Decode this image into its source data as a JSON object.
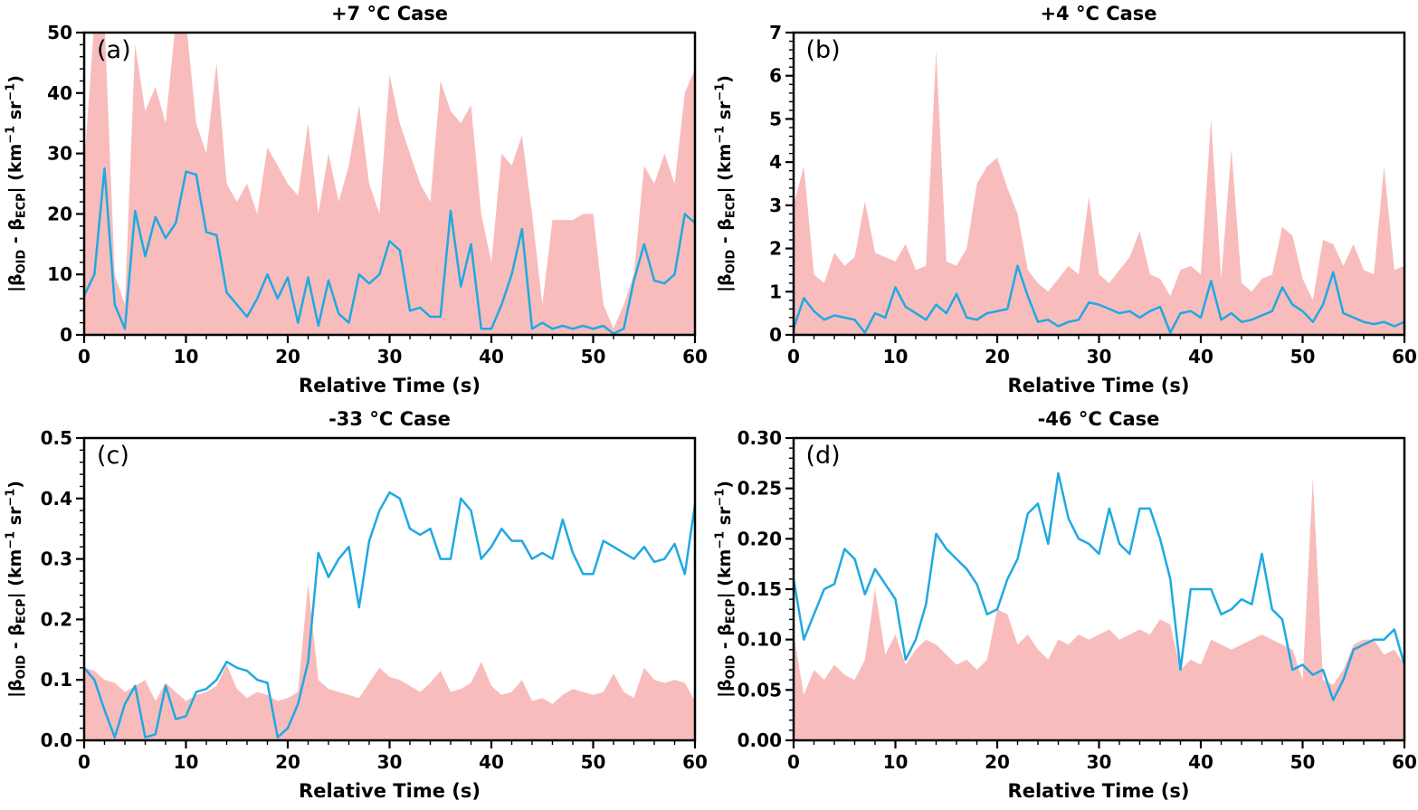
{
  "figure": {
    "background": "#ffffff",
    "xlabel": "Relative Time (s)",
    "ylabel_text": "|βOID - βECP| (km−1 sr−1)",
    "ylabel_parts": [
      {
        "t": "|β"
      },
      {
        "t": "OID",
        "s": "sub"
      },
      {
        "t": " - β"
      },
      {
        "t": "ECP",
        "s": "sub"
      },
      {
        "t": "| (km"
      },
      {
        "t": "−1",
        "s": "sup"
      },
      {
        "t": " sr"
      },
      {
        "t": "−1",
        "s": "sup"
      },
      {
        "t": ")"
      }
    ],
    "x": [
      0,
      1,
      2,
      3,
      4,
      5,
      6,
      7,
      8,
      9,
      10,
      11,
      12,
      13,
      14,
      15,
      16,
      17,
      18,
      19,
      20,
      21,
      22,
      23,
      24,
      25,
      26,
      27,
      28,
      29,
      30,
      31,
      32,
      33,
      34,
      35,
      36,
      37,
      38,
      39,
      40,
      41,
      42,
      43,
      44,
      45,
      46,
      47,
      48,
      49,
      50,
      51,
      52,
      53,
      54,
      55,
      56,
      57,
      58,
      59,
      60
    ]
  },
  "chart_data": [
    {
      "type": "area+line",
      "panel_label": "(a)",
      "title": "+7 °C Case",
      "xlabel": "Relative Time (s)",
      "ylabel": "|βOID - βECP| (km−1 sr−1)",
      "xlim": [
        0,
        60
      ],
      "ylim": [
        0,
        50
      ],
      "xticks": [
        0,
        10,
        20,
        30,
        40,
        50,
        60
      ],
      "xtick_labels": [
        "0",
        "10",
        "20",
        "30",
        "40",
        "50",
        "60"
      ],
      "yticks": [
        0,
        10,
        20,
        30,
        40,
        50
      ],
      "ytick_labels": [
        "0",
        "10",
        "20",
        "30",
        "40",
        "50"
      ],
      "x_minor_step": 2,
      "y_minor_step": 2,
      "grid": false,
      "legend": "none",
      "series": [
        {
          "name": "uncertainty-envelope",
          "type": "area",
          "color": "#F8BCBC",
          "values": [
            28,
            52,
            52,
            10,
            5,
            48,
            37,
            41,
            35,
            52,
            52,
            35,
            30,
            45,
            25,
            22,
            25,
            20,
            31,
            28,
            25,
            23,
            35,
            20,
            30,
            22,
            28,
            38,
            25,
            20,
            43,
            35,
            30,
            25,
            22,
            42,
            37,
            35,
            38,
            20,
            12,
            30,
            28,
            33,
            20,
            5,
            19,
            19,
            19,
            20,
            20,
            5,
            1,
            5,
            10,
            28,
            25,
            30,
            25,
            40,
            44
          ]
        },
        {
          "name": "abs-difference",
          "type": "line",
          "color": "#1FA9E2",
          "values": [
            6.5,
            10,
            27.5,
            5,
            1,
            20.5,
            13,
            19.5,
            16,
            18.5,
            27,
            26.5,
            17,
            16.5,
            7,
            5,
            3,
            6,
            10,
            6,
            9.5,
            2,
            9.5,
            1.5,
            9,
            3.5,
            2,
            10,
            8.5,
            10,
            15.5,
            14,
            4,
            4.5,
            3,
            3,
            20.5,
            8,
            15,
            1,
            1,
            5,
            10,
            17.5,
            1,
            2,
            1,
            1.5,
            1,
            1.5,
            1,
            1.5,
            0.2,
            1,
            9,
            15,
            9,
            8.5,
            10,
            20,
            18.5
          ]
        }
      ]
    },
    {
      "type": "area+line",
      "panel_label": "(b)",
      "title": "+4 °C Case",
      "xlabel": "Relative Time (s)",
      "ylabel": "|βOID - βECP| (km−1 sr−1)",
      "xlim": [
        0,
        60
      ],
      "ylim": [
        0,
        7
      ],
      "xticks": [
        0,
        10,
        20,
        30,
        40,
        50,
        60
      ],
      "xtick_labels": [
        "0",
        "10",
        "20",
        "30",
        "40",
        "50",
        "60"
      ],
      "yticks": [
        0,
        1,
        2,
        3,
        4,
        5,
        6,
        7
      ],
      "ytick_labels": [
        "0",
        "1",
        "2",
        "3",
        "4",
        "5",
        "6",
        "7"
      ],
      "x_minor_step": 2,
      "y_minor_step": 0.2,
      "grid": false,
      "legend": "none",
      "series": [
        {
          "name": "uncertainty-envelope",
          "type": "area",
          "color": "#F8BCBC",
          "values": [
            3.0,
            3.9,
            1.4,
            1.2,
            1.9,
            1.6,
            1.8,
            3.1,
            1.9,
            1.8,
            1.7,
            2.1,
            1.5,
            1.6,
            6.6,
            1.7,
            1.6,
            2.0,
            3.5,
            3.9,
            4.1,
            3.4,
            2.8,
            1.5,
            1.2,
            1.0,
            1.3,
            1.6,
            1.4,
            3.2,
            1.4,
            1.2,
            1.5,
            1.8,
            2.4,
            1.4,
            1.3,
            0.9,
            1.5,
            1.6,
            1.4,
            5.0,
            1.3,
            4.3,
            1.2,
            1.0,
            1.3,
            1.4,
            2.5,
            2.3,
            1.3,
            0.8,
            2.2,
            2.1,
            1.6,
            2.1,
            1.5,
            1.4,
            3.9,
            1.5,
            1.6
          ]
        },
        {
          "name": "abs-difference",
          "type": "line",
          "color": "#1FA9E2",
          "values": [
            0.15,
            0.85,
            0.55,
            0.35,
            0.45,
            0.4,
            0.35,
            0.05,
            0.5,
            0.4,
            1.1,
            0.65,
            0.5,
            0.35,
            0.7,
            0.5,
            0.95,
            0.4,
            0.35,
            0.5,
            0.55,
            0.6,
            1.6,
            0.9,
            0.3,
            0.35,
            0.2,
            0.3,
            0.35,
            0.75,
            0.7,
            0.6,
            0.5,
            0.55,
            0.4,
            0.55,
            0.65,
            0.05,
            0.5,
            0.55,
            0.4,
            1.25,
            0.35,
            0.5,
            0.3,
            0.35,
            0.45,
            0.55,
            1.1,
            0.7,
            0.55,
            0.3,
            0.7,
            1.45,
            0.5,
            0.4,
            0.3,
            0.25,
            0.3,
            0.2,
            0.3
          ]
        }
      ]
    },
    {
      "type": "area+line",
      "panel_label": "(c)",
      "title": "-33 °C Case",
      "xlabel": "Relative Time (s)",
      "ylabel": "|βOID - βECP| (km−1 sr−1)",
      "xlim": [
        0,
        60
      ],
      "ylim": [
        0,
        0.5
      ],
      "xticks": [
        0,
        10,
        20,
        30,
        40,
        50,
        60
      ],
      "xtick_labels": [
        "0",
        "10",
        "20",
        "30",
        "40",
        "50",
        "60"
      ],
      "yticks": [
        0,
        0.1,
        0.2,
        0.3,
        0.4,
        0.5
      ],
      "ytick_labels": [
        "0.0",
        "0.1",
        "0.2",
        "0.3",
        "0.4",
        "0.5"
      ],
      "x_minor_step": 2,
      "y_minor_step": 0.02,
      "grid": false,
      "legend": "none",
      "series": [
        {
          "name": "uncertainty-envelope",
          "type": "area",
          "color": "#F8BCBC",
          "values": [
            0.12,
            0.115,
            0.1,
            0.095,
            0.08,
            0.09,
            0.1,
            0.065,
            0.095,
            0.08,
            0.065,
            0.075,
            0.08,
            0.09,
            0.125,
            0.085,
            0.07,
            0.08,
            0.075,
            0.065,
            0.07,
            0.08,
            0.26,
            0.1,
            0.085,
            0.08,
            0.075,
            0.07,
            0.095,
            0.12,
            0.105,
            0.1,
            0.09,
            0.08,
            0.095,
            0.115,
            0.08,
            0.085,
            0.095,
            0.13,
            0.09,
            0.075,
            0.08,
            0.1,
            0.065,
            0.07,
            0.06,
            0.075,
            0.085,
            0.08,
            0.075,
            0.08,
            0.11,
            0.08,
            0.07,
            0.12,
            0.1,
            0.095,
            0.1,
            0.095,
            0.065
          ]
        },
        {
          "name": "abs-difference",
          "type": "line",
          "color": "#1FA9E2",
          "values": [
            0.12,
            0.1,
            0.05,
            0.005,
            0.06,
            0.09,
            0.005,
            0.01,
            0.09,
            0.035,
            0.04,
            0.08,
            0.085,
            0.1,
            0.13,
            0.12,
            0.115,
            0.1,
            0.095,
            0.005,
            0.02,
            0.06,
            0.13,
            0.31,
            0.27,
            0.3,
            0.32,
            0.22,
            0.33,
            0.38,
            0.41,
            0.4,
            0.35,
            0.34,
            0.35,
            0.3,
            0.3,
            0.4,
            0.38,
            0.3,
            0.32,
            0.35,
            0.33,
            0.33,
            0.3,
            0.31,
            0.3,
            0.365,
            0.31,
            0.275,
            0.275,
            0.33,
            0.32,
            0.31,
            0.3,
            0.32,
            0.295,
            0.3,
            0.325,
            0.275,
            0.39
          ]
        }
      ]
    },
    {
      "type": "area+line",
      "panel_label": "(d)",
      "title": "-46 °C Case",
      "xlabel": "Relative Time (s)",
      "ylabel": "|βOID - βECP| (km−1 sr−1)",
      "xlim": [
        0,
        60
      ],
      "ylim": [
        0,
        0.3
      ],
      "xticks": [
        0,
        10,
        20,
        30,
        40,
        50,
        60
      ],
      "xtick_labels": [
        "0",
        "10",
        "20",
        "30",
        "40",
        "50",
        "60"
      ],
      "yticks": [
        0,
        0.05,
        0.1,
        0.15,
        0.2,
        0.25,
        0.3
      ],
      "ytick_labels": [
        "0.00",
        "0.05",
        "0.10",
        "0.15",
        "0.20",
        "0.25",
        "0.30"
      ],
      "x_minor_step": 2,
      "y_minor_step": 0.01,
      "grid": false,
      "legend": "none",
      "series": [
        {
          "name": "uncertainty-envelope",
          "type": "area",
          "color": "#F8BCBC",
          "values": [
            0.105,
            0.045,
            0.07,
            0.06,
            0.075,
            0.065,
            0.06,
            0.08,
            0.15,
            0.085,
            0.105,
            0.075,
            0.09,
            0.1,
            0.095,
            0.085,
            0.075,
            0.08,
            0.07,
            0.08,
            0.13,
            0.125,
            0.095,
            0.105,
            0.09,
            0.08,
            0.1,
            0.095,
            0.105,
            0.1,
            0.105,
            0.11,
            0.1,
            0.105,
            0.11,
            0.105,
            0.12,
            0.115,
            0.07,
            0.08,
            0.075,
            0.1,
            0.095,
            0.09,
            0.095,
            0.1,
            0.105,
            0.1,
            0.095,
            0.09,
            0.06,
            0.26,
            0.06,
            0.055,
            0.07,
            0.095,
            0.1,
            0.1,
            0.085,
            0.09,
            0.075
          ]
        },
        {
          "name": "abs-difference",
          "type": "line",
          "color": "#1FA9E2",
          "values": [
            0.16,
            0.1,
            0.125,
            0.15,
            0.155,
            0.19,
            0.18,
            0.145,
            0.17,
            0.155,
            0.14,
            0.08,
            0.1,
            0.135,
            0.205,
            0.19,
            0.18,
            0.17,
            0.155,
            0.125,
            0.13,
            0.16,
            0.18,
            0.225,
            0.235,
            0.195,
            0.265,
            0.22,
            0.2,
            0.195,
            0.185,
            0.23,
            0.195,
            0.185,
            0.23,
            0.23,
            0.2,
            0.16,
            0.07,
            0.15,
            0.15,
            0.15,
            0.125,
            0.13,
            0.14,
            0.135,
            0.185,
            0.13,
            0.12,
            0.07,
            0.075,
            0.065,
            0.07,
            0.04,
            0.06,
            0.09,
            0.095,
            0.1,
            0.1,
            0.11,
            0.075
          ]
        }
      ]
    }
  ]
}
